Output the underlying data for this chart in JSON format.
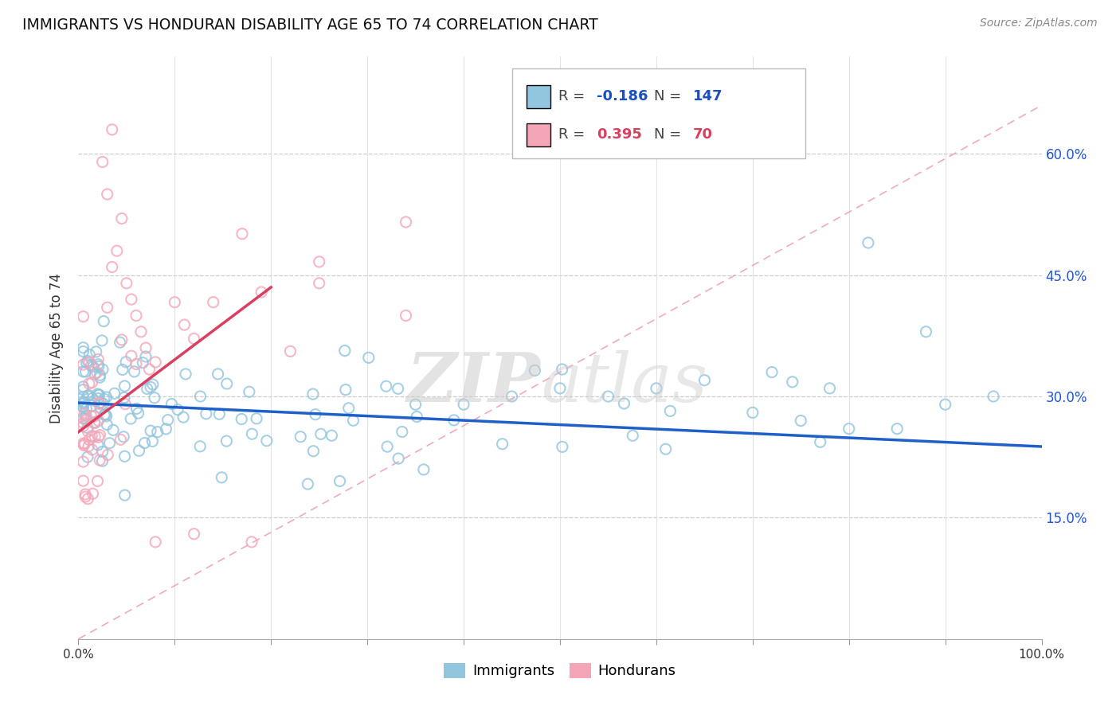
{
  "title": "IMMIGRANTS VS HONDURAN DISABILITY AGE 65 TO 74 CORRELATION CHART",
  "source": "Source: ZipAtlas.com",
  "ylabel": "Disability Age 65 to 74",
  "xlim": [
    0.0,
    1.0
  ],
  "ylim": [
    0.0,
    0.72
  ],
  "ytick_positions": [
    0.15,
    0.3,
    0.45,
    0.6
  ],
  "ytick_labels": [
    "15.0%",
    "30.0%",
    "45.0%",
    "60.0%"
  ],
  "legend_blue_R": "-0.186",
  "legend_blue_N": "147",
  "legend_pink_R": "0.395",
  "legend_pink_N": "70",
  "blue_color": "#92c5de",
  "pink_color": "#f4a6b8",
  "blue_line_color": "#1f5fc8",
  "pink_line_color": "#d94060",
  "dashed_line_color": "#f0a0b8",
  "blue_trendline_x": [
    0.0,
    1.0
  ],
  "blue_trendline_y": [
    0.292,
    0.238
  ],
  "pink_trendline_x": [
    0.0,
    0.2
  ],
  "pink_trendline_y": [
    0.256,
    0.435
  ],
  "diag_line_x": [
    0.0,
    1.0
  ],
  "diag_line_y": [
    0.0,
    0.66
  ]
}
